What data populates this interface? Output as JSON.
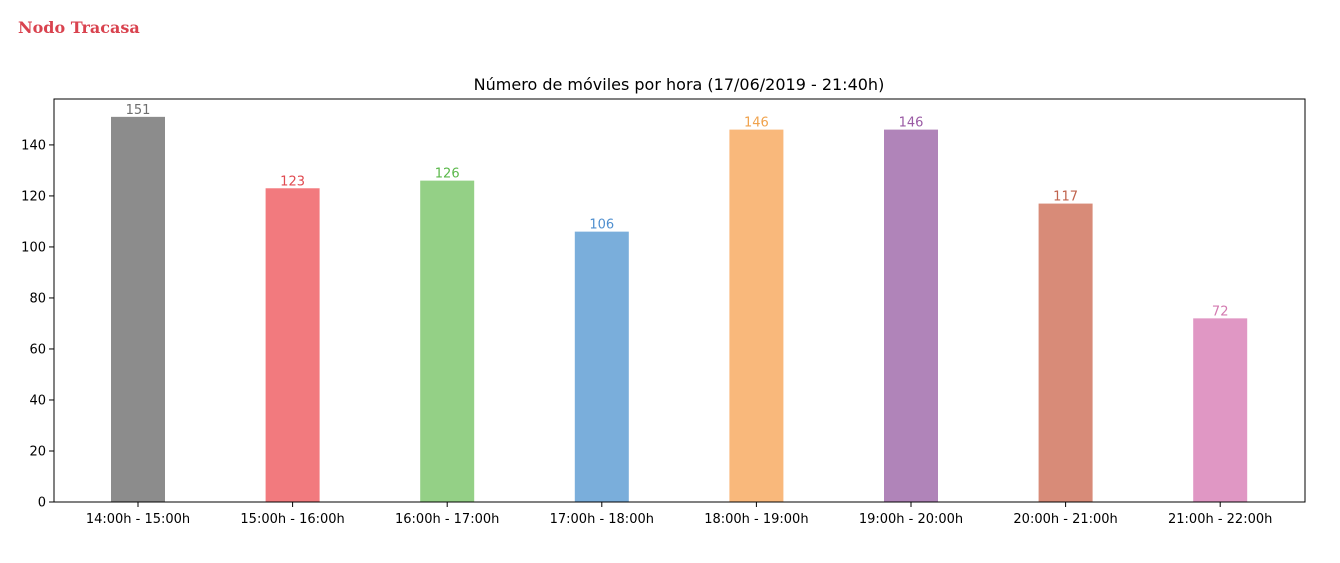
{
  "header": {
    "brand": "Nodo Tracasa"
  },
  "chart_data": {
    "type": "bar",
    "title": "Número de móviles por hora (17/06/2019 - 21:40h)",
    "xlabel": "",
    "ylabel": "",
    "categories": [
      "14:00h - 15:00h",
      "15:00h - 16:00h",
      "16:00h - 17:00h",
      "17:00h - 18:00h",
      "18:00h - 19:00h",
      "19:00h - 20:00h",
      "20:00h - 21:00h",
      "21:00h - 22:00h"
    ],
    "values": [
      151,
      123,
      126,
      106,
      146,
      146,
      117,
      72
    ],
    "colors": [
      "#8c8c8c",
      "#f27a7e",
      "#94d086",
      "#7aaedb",
      "#f9b87b",
      "#b084b9",
      "#d88b78",
      "#e097c4"
    ],
    "label_colors": [
      "#6f6f6f",
      "#e04a50",
      "#5ab84a",
      "#4f8fcf",
      "#f0a24c",
      "#9a5aa4",
      "#c0634d",
      "#d37ab0"
    ],
    "ylim": [
      0,
      158
    ],
    "yticks": [
      0,
      20,
      40,
      60,
      80,
      100,
      120,
      140
    ],
    "grid": false,
    "legend": "none"
  }
}
